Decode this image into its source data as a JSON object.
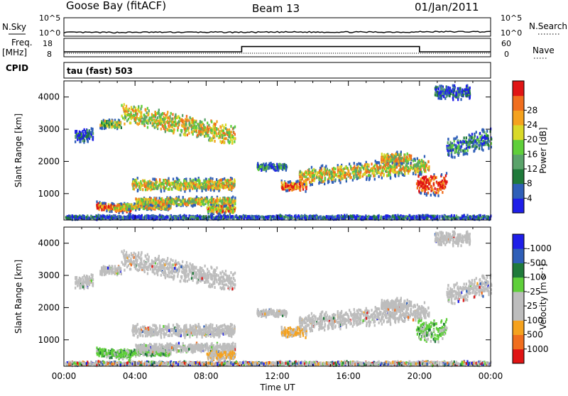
{
  "header": {
    "station": "Goose Bay (fitACF)",
    "beam": "Beam 13",
    "date": "01/Jan/2011"
  },
  "strip_labels": {
    "nsky": "N.Sky",
    "nsky_ticks": [
      "10^5",
      "10^0"
    ],
    "nsearch": "N.Search",
    "nsearch_ticks": [
      "10^5",
      "10^0"
    ],
    "freq": "Freq.",
    "freq_unit": "[MHz]",
    "freq_ticks": [
      "18",
      "8"
    ],
    "nave": "Nave",
    "nave_ticks": [
      "60",
      "0"
    ],
    "cpid": "CPID",
    "cpid_value": "tau (fast) 503"
  },
  "colors": {
    "power": [
      "#1e1ee8",
      "#2f5fb8",
      "#1f7a3a",
      "#5aa36a",
      "#5fcf3a",
      "#d9d928",
      "#f5a21e",
      "#f06e1e",
      "#e01414"
    ],
    "velocity": [
      "#e01414",
      "#f06e1e",
      "#f5a21e",
      "#bdbdbd",
      "#bdbdbd",
      "#5fcf3a",
      "#1f7a3a",
      "#2f5fb8",
      "#1e1ee8"
    ],
    "ground_scatter": "#bdbdbd"
  },
  "chart_data": [
    {
      "type": "line",
      "name": "noise-strip",
      "ylabel": "N.Sky",
      "ylabel_right": "N.Search",
      "x": [
        "00:00",
        "04:00",
        "08:00",
        "12:00",
        "16:00",
        "20:00",
        "24:00"
      ],
      "nsky_log10": [
        0.9,
        0.95,
        0.95,
        1.0,
        1.0,
        1.1,
        1.05
      ]
    },
    {
      "type": "line",
      "name": "frequency-strip",
      "ylabel": "Freq. [MHz]",
      "ylabel_right": "Nave",
      "ylim": [
        8,
        18
      ],
      "freq_segments": [
        {
          "start": "00:00",
          "end": "10:00",
          "freq": 8.8
        },
        {
          "start": "10:00",
          "end": "20:00",
          "freq": 15.0
        },
        {
          "start": "20:00",
          "end": "24:00",
          "freq": 8.8
        }
      ]
    },
    {
      "type": "heatmap",
      "name": "power",
      "xlabel": "",
      "ylabel": "Slant Range [km]",
      "yticks": [
        "1000",
        "2000",
        "3000",
        "4000"
      ],
      "ylim": [
        180,
        4500
      ],
      "colorbar_label": "Power [dB]",
      "colorbar_ticks": [
        "4",
        "8",
        "12",
        "16",
        "20",
        "24",
        "28"
      ],
      "colorbar_range": [
        0,
        30
      ]
    },
    {
      "type": "heatmap",
      "name": "velocity",
      "xlabel": "Time UT",
      "ylabel": "Slant Range [km]",
      "xticks": [
        "00:00",
        "04:00",
        "08:00",
        "12:00",
        "16:00",
        "20:00",
        "00:00"
      ],
      "yticks": [
        "1000",
        "2000",
        "3000",
        "4000"
      ],
      "ylim": [
        180,
        4500
      ],
      "colorbar_label": "Velocity [m s⁻¹]",
      "colorbar_ticks": [
        "-1000",
        "-500",
        "-100",
        "-25",
        "25",
        "100",
        "500",
        "1000"
      ]
    }
  ]
}
